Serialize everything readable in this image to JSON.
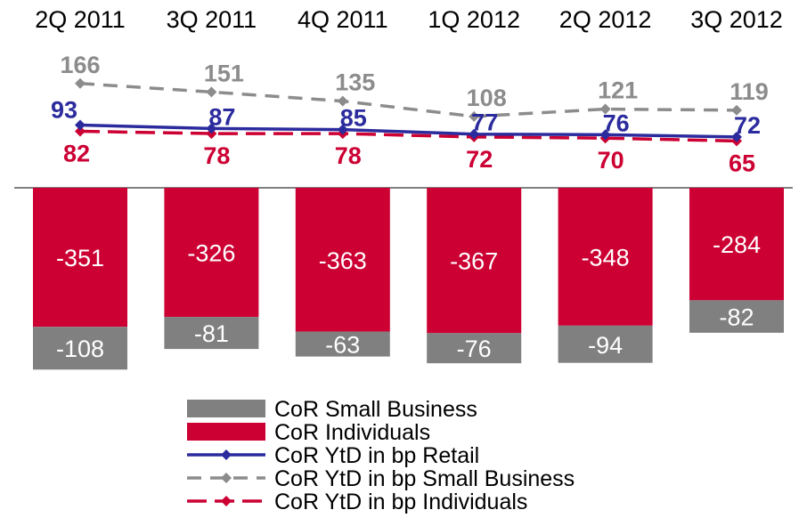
{
  "colors": {
    "small_business": "#808080",
    "individuals": "#cc0033",
    "retail_line": "#2b2b9e",
    "small_business_line": "#8c8c8c",
    "individuals_line": "#cc0033"
  },
  "chart_data": {
    "type": "bar",
    "categories": [
      "2Q 2011",
      "3Q 2011",
      "4Q 2011",
      "1Q 2012",
      "2Q 2012",
      "3Q 2012"
    ],
    "series": [
      {
        "name": "CoR Small Business",
        "kind": "stacked-bar",
        "values": [
          -108,
          -81,
          -63,
          -76,
          -94,
          -82
        ]
      },
      {
        "name": "CoR Individuals",
        "kind": "stacked-bar",
        "values": [
          -351,
          -326,
          -363,
          -367,
          -348,
          -284
        ]
      },
      {
        "name": "CoR YtD in bp Retail",
        "kind": "line",
        "values": [
          93,
          87,
          85,
          77,
          76,
          72
        ]
      },
      {
        "name": "CoR YtD in bp Small Business",
        "kind": "line",
        "values": [
          166,
          151,
          135,
          108,
          121,
          119
        ]
      },
      {
        "name": "CoR YtD in bp Individuals",
        "kind": "line",
        "values": [
          82,
          78,
          78,
          72,
          70,
          65
        ]
      }
    ],
    "legend_position": "bottom",
    "grid": false
  }
}
